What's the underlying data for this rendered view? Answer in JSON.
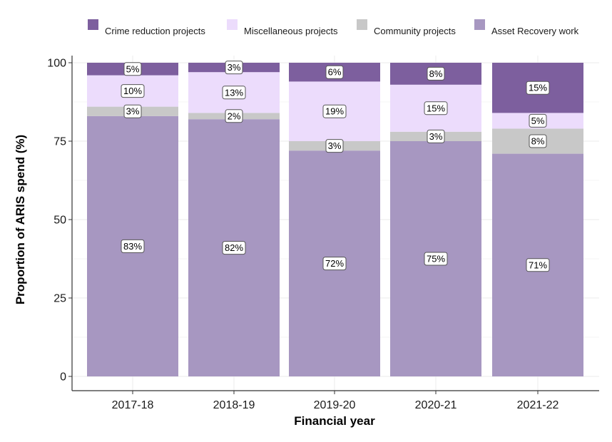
{
  "chart_data": {
    "type": "bar",
    "stacked": true,
    "title": "",
    "xlabel": "Financial year",
    "ylabel": "Proportion of ARIS spend (%)",
    "ylim": [
      0,
      100
    ],
    "yticks": [
      0,
      25,
      50,
      75,
      100
    ],
    "grid": true,
    "legend_position": "top",
    "categories": [
      "2017-18",
      "2018-19",
      "2019-20",
      "2020-21",
      "2021-22"
    ],
    "series": [
      {
        "name": "Asset Recovery work",
        "color": "#a797c1",
        "values": [
          83,
          82,
          72,
          75,
          71
        ],
        "labels": [
          "83%",
          "82%",
          "72%",
          "75%",
          "71%"
        ]
      },
      {
        "name": "Community projects",
        "color": "#c8c8c8",
        "values": [
          3,
          2,
          3,
          3,
          8
        ],
        "labels": [
          "3%",
          "2%",
          "3%",
          "3%",
          "8%"
        ]
      },
      {
        "name": "Miscellaneous projects",
        "color": "#ecdcfc",
        "values": [
          10,
          13,
          19,
          15,
          5
        ],
        "labels": [
          "10%",
          "13%",
          "19%",
          "15%",
          "5%"
        ]
      },
      {
        "name": "Crime reduction projects",
        "color": "#7d5f9e",
        "values": [
          5,
          3,
          6,
          8,
          15
        ],
        "labels": [
          "5%",
          "3%",
          "6%",
          "8%",
          "15%"
        ]
      }
    ],
    "legend_order": [
      "Crime reduction projects",
      "Miscellaneous projects",
      "Community projects",
      "Asset Recovery work"
    ]
  }
}
